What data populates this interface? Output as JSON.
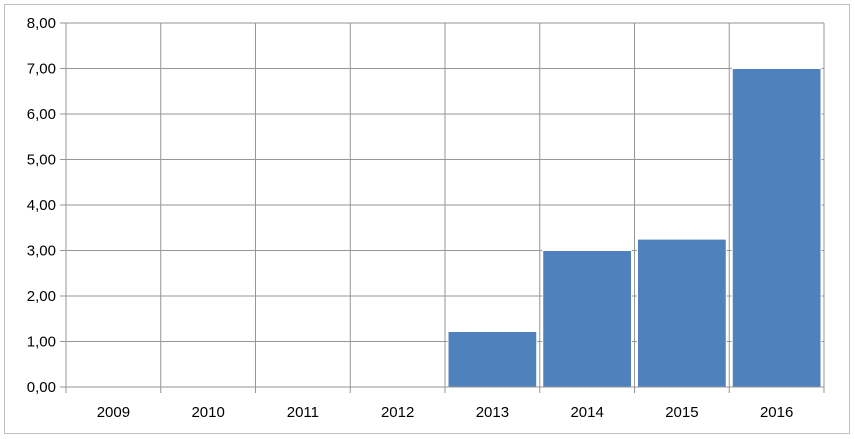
{
  "chart_data": {
    "type": "bar",
    "categories": [
      "2009",
      "2010",
      "2011",
      "2012",
      "2013",
      "2014",
      "2015",
      "2016"
    ],
    "values": [
      0,
      0,
      0,
      0,
      1.22,
      3.0,
      3.25,
      7.0
    ],
    "y_tick_labels": [
      "0,00",
      "1,00",
      "2,00",
      "3,00",
      "4,00",
      "5,00",
      "6,00",
      "7,00",
      "8,00"
    ],
    "y_ticks": [
      0,
      1,
      2,
      3,
      4,
      5,
      6,
      7,
      8
    ],
    "ylim": [
      0,
      8
    ],
    "title": "",
    "xlabel": "",
    "ylabel": "",
    "grid": "on",
    "legend": "none",
    "bar_color": "#4f81bd",
    "bar_edge_color": "#ffffff",
    "grid_color": "#969696"
  }
}
